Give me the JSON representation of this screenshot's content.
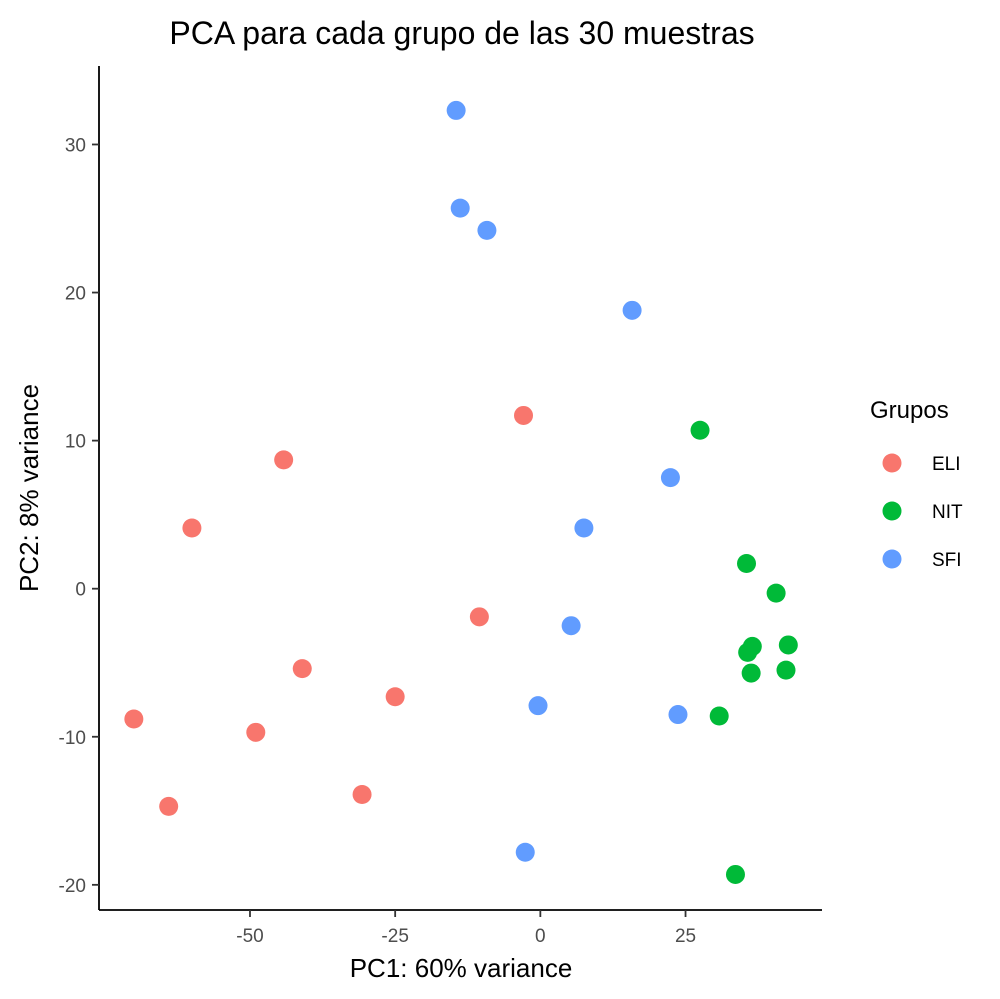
{
  "chart_data": {
    "type": "scatter",
    "title": "PCA para cada grupo de las 30 muestras",
    "xlabel": "PC1: 60% variance",
    "ylabel": "PC2: 8% variance",
    "xlim": [
      -76,
      48.5
    ],
    "ylim": [
      -21.7,
      35.3
    ],
    "xticks": [
      -50,
      -25,
      0,
      25
    ],
    "xtick_labels": [
      "-50",
      "-25",
      "0",
      "25"
    ],
    "yticks": [
      -20,
      -10,
      0,
      10,
      20,
      30
    ],
    "ytick_labels": [
      "-20",
      "-10",
      "0",
      "10",
      "20",
      "30"
    ],
    "grid": false,
    "legend": {
      "title": "Grupos",
      "position": "right"
    },
    "series": [
      {
        "name": "ELI",
        "color": "#F8766D",
        "points": [
          {
            "x": -2.9,
            "y": 11.7
          },
          {
            "x": -44.2,
            "y": 8.7
          },
          {
            "x": -60.0,
            "y": 4.1
          },
          {
            "x": -10.5,
            "y": -1.9
          },
          {
            "x": -41.0,
            "y": -5.4
          },
          {
            "x": -25.0,
            "y": -7.3
          },
          {
            "x": -70.0,
            "y": -8.8
          },
          {
            "x": -49.0,
            "y": -9.7
          },
          {
            "x": -64.0,
            "y": -14.7
          },
          {
            "x": -30.7,
            "y": -13.9
          }
        ]
      },
      {
        "name": "NIT",
        "color": "#00BA38",
        "points": [
          {
            "x": 27.5,
            "y": 10.7
          },
          {
            "x": 35.5,
            "y": 1.7
          },
          {
            "x": 40.6,
            "y": -0.3
          },
          {
            "x": 36.5,
            "y": -3.9
          },
          {
            "x": 42.7,
            "y": -3.8
          },
          {
            "x": 35.7,
            "y": -4.3
          },
          {
            "x": 36.3,
            "y": -5.7
          },
          {
            "x": 42.3,
            "y": -5.5
          },
          {
            "x": 30.8,
            "y": -8.6
          },
          {
            "x": 33.6,
            "y": -19.3
          }
        ]
      },
      {
        "name": "SFI",
        "color": "#619CFF",
        "points": [
          {
            "x": -14.5,
            "y": 32.3
          },
          {
            "x": -13.8,
            "y": 25.7
          },
          {
            "x": -9.2,
            "y": 24.2
          },
          {
            "x": 15.8,
            "y": 18.8
          },
          {
            "x": 22.4,
            "y": 7.5
          },
          {
            "x": 7.5,
            "y": 4.1
          },
          {
            "x": 5.3,
            "y": -2.5
          },
          {
            "x": -0.4,
            "y": -7.9
          },
          {
            "x": 23.7,
            "y": -8.5
          },
          {
            "x": -2.6,
            "y": -17.8
          }
        ]
      }
    ]
  }
}
